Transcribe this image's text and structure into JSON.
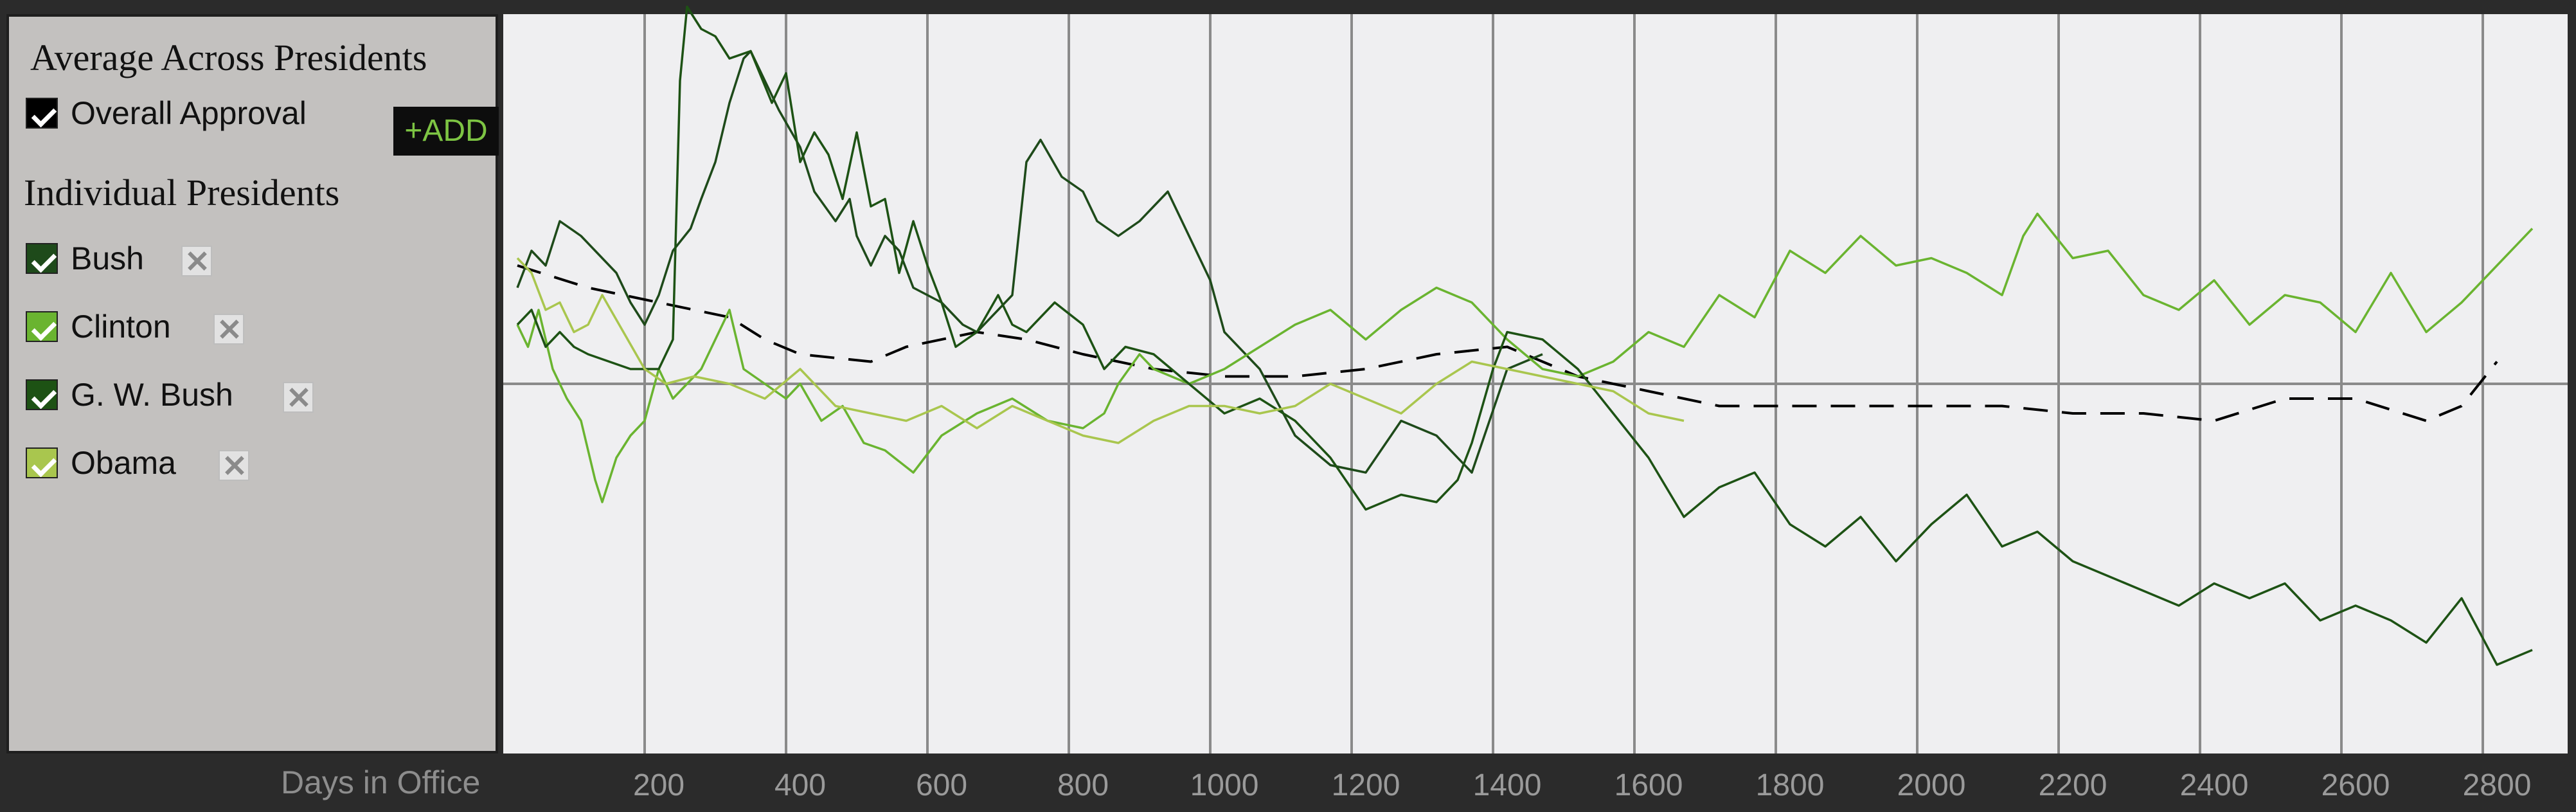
{
  "sidebar": {
    "average_heading": "Average Across Presidents",
    "overall_label": "Overall Approval",
    "add_label": "+ADD",
    "individual_heading": "Individual Presidents",
    "presidents": [
      {
        "label": "Bush",
        "color": "#1e4a1a"
      },
      {
        "label": "Clinton",
        "color": "#6ab430"
      },
      {
        "label": "G. W. Bush",
        "color": "#1d5214"
      },
      {
        "label": "Obama",
        "color": "#a9c64e"
      }
    ]
  },
  "chart_data": {
    "type": "line",
    "xlabel": "Days in Office",
    "xlim": [
      -20,
      2900
    ],
    "ylim": [
      0,
      100
    ],
    "x_ticks": [
      200,
      400,
      600,
      800,
      1000,
      1200,
      1400,
      1600,
      1800,
      2000,
      2200,
      2400,
      2600,
      2800
    ],
    "gridlines": [
      180,
      380,
      580,
      780,
      980,
      1180,
      1380,
      1580,
      1780,
      1980,
      2180,
      2380,
      2580,
      2780
    ],
    "baseline": 50,
    "series": [
      {
        "name": "Overall Approval",
        "color": "#000000",
        "dashed": true,
        "x": [
          0,
          100,
          200,
          300,
          350,
          400,
          500,
          550,
          650,
          720,
          800,
          900,
          1000,
          1100,
          1200,
          1300,
          1400,
          1500,
          1550,
          1600,
          1700,
          1800,
          1900,
          2000,
          2100,
          2200,
          2300,
          2400,
          2500,
          2600,
          2700,
          2750,
          2800
        ],
        "y": [
          66,
          63,
          61,
          59,
          56,
          54,
          53,
          55,
          57,
          56,
          54,
          52,
          51,
          51,
          52,
          54,
          55,
          51,
          50,
          49,
          47,
          47,
          47,
          47,
          47,
          46,
          46,
          45,
          48,
          48,
          45,
          47,
          53
        ]
      },
      {
        "name": "Bush",
        "color": "#1e4a1a",
        "x": [
          0,
          20,
          40,
          60,
          90,
          110,
          140,
          160,
          180,
          200,
          220,
          245,
          260,
          280,
          300,
          320,
          330,
          350,
          370,
          400,
          420,
          450,
          470,
          480,
          500,
          520,
          540,
          560,
          600,
          630,
          650,
          700,
          720,
          740,
          770,
          800,
          820,
          850,
          880,
          900,
          920,
          950,
          980,
          1000,
          1050,
          1100,
          1150,
          1200,
          1250,
          1300,
          1350,
          1400,
          1450
        ],
        "y": [
          63,
          68,
          66,
          72,
          70,
          68,
          65,
          61,
          58,
          62,
          68,
          71,
          75,
          80,
          88,
          94,
          95,
          91,
          87,
          82,
          76,
          72,
          75,
          70,
          66,
          70,
          68,
          63,
          61,
          58,
          57,
          62,
          80,
          83,
          78,
          76,
          72,
          70,
          72,
          74,
          76,
          70,
          64,
          57,
          52,
          43,
          39,
          38,
          45,
          43,
          38,
          52,
          54
        ]
      },
      {
        "name": "Clinton",
        "color": "#6ab430",
        "x": [
          0,
          15,
          30,
          50,
          70,
          90,
          110,
          120,
          140,
          160,
          180,
          200,
          220,
          240,
          260,
          280,
          300,
          320,
          350,
          380,
          400,
          430,
          460,
          490,
          520,
          560,
          600,
          650,
          700,
          750,
          800,
          830,
          850,
          880,
          900,
          950,
          1000,
          1050,
          1100,
          1150,
          1200,
          1250,
          1300,
          1350,
          1400,
          1450,
          1500,
          1550,
          1600,
          1650,
          1700,
          1750,
          1800,
          1850,
          1900,
          1950,
          2000,
          2050,
          2100,
          2130,
          2150,
          2200,
          2250,
          2300,
          2350,
          2400,
          2450,
          2500,
          2550,
          2600,
          2650,
          2700,
          2750,
          2800,
          2850
        ],
        "y": [
          58,
          55,
          60,
          52,
          48,
          45,
          37,
          34,
          40,
          43,
          45,
          52,
          48,
          50,
          52,
          56,
          60,
          52,
          50,
          48,
          50,
          45,
          47,
          42,
          41,
          38,
          43,
          46,
          48,
          45,
          44,
          46,
          50,
          54,
          52,
          50,
          52,
          55,
          58,
          60,
          56,
          60,
          63,
          61,
          56,
          52,
          51,
          53,
          57,
          55,
          62,
          59,
          68,
          65,
          70,
          66,
          67,
          65,
          62,
          70,
          73,
          67,
          68,
          62,
          60,
          64,
          58,
          62,
          61,
          57,
          65,
          57,
          61,
          66,
          71
        ]
      },
      {
        "name": "G. W. Bush",
        "color": "#1d5214",
        "x": [
          0,
          20,
          40,
          60,
          80,
          100,
          130,
          160,
          200,
          220,
          230,
          240,
          260,
          280,
          300,
          330,
          360,
          380,
          400,
          420,
          440,
          460,
          480,
          500,
          520,
          540,
          560,
          580,
          600,
          620,
          650,
          680,
          700,
          720,
          760,
          800,
          830,
          860,
          900,
          950,
          1000,
          1050,
          1100,
          1150,
          1200,
          1250,
          1300,
          1330,
          1350,
          1380,
          1400,
          1450,
          1500,
          1550,
          1600,
          1650,
          1700,
          1750,
          1800,
          1850,
          1900,
          1950,
          2000,
          2050,
          2100,
          2150,
          2200,
          2250,
          2300,
          2350,
          2400,
          2450,
          2500,
          2550,
          2600,
          2650,
          2700,
          2750,
          2800,
          2850
        ],
        "y": [
          58,
          60,
          55,
          57,
          55,
          54,
          53,
          52,
          52,
          56,
          91,
          101,
          98,
          97,
          94,
          95,
          88,
          92,
          80,
          84,
          81,
          75,
          84,
          74,
          75,
          65,
          72,
          66,
          61,
          55,
          57,
          62,
          58,
          57,
          61,
          58,
          52,
          55,
          54,
          50,
          46,
          48,
          45,
          40,
          33,
          35,
          34,
          37,
          42,
          52,
          57,
          56,
          52,
          46,
          40,
          32,
          36,
          38,
          31,
          28,
          32,
          26,
          31,
          35,
          28,
          30,
          26,
          24,
          22,
          20,
          23,
          21,
          23,
          18,
          20,
          18,
          15,
          21,
          12,
          14
        ]
      },
      {
        "name": "Obama",
        "color": "#a9c64e",
        "x": [
          0,
          20,
          40,
          60,
          80,
          100,
          120,
          150,
          180,
          210,
          250,
          300,
          350,
          400,
          450,
          500,
          550,
          600,
          650,
          700,
          750,
          800,
          850,
          900,
          950,
          1000,
          1050,
          1100,
          1150,
          1200,
          1250,
          1300,
          1350,
          1400,
          1450,
          1500,
          1550,
          1600,
          1650
        ],
        "y": [
          67,
          65,
          60,
          61,
          57,
          58,
          62,
          57,
          52,
          50,
          51,
          50,
          48,
          52,
          47,
          46,
          45,
          47,
          44,
          47,
          45,
          43,
          42,
          45,
          47,
          47,
          46,
          47,
          50,
          48,
          46,
          50,
          53,
          52,
          51,
          50,
          49,
          46,
          45
        ]
      }
    ]
  }
}
